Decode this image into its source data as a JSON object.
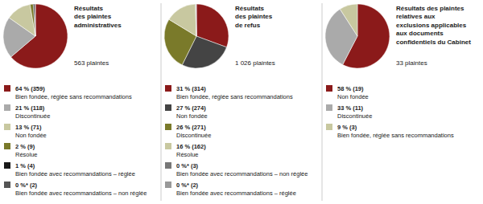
{
  "chart_data": [
    {
      "type": "pie",
      "title": "Résultats\ndes plaintes\nadministratives",
      "subtitle": "563 plaintes",
      "categories": [
        "Bien fondée, réglée sans recommandations",
        "Discontinuée",
        "Non fondée",
        "Résolue",
        "Bien fondée avec recommandations – réglée",
        "Bien fondée avec recommandations – non réglée"
      ],
      "values": [
        359,
        118,
        71,
        9,
        4,
        2
      ],
      "value_labels": [
        "64 % (359)",
        "21 % (118)",
        "13 % (71)",
        "2 % (9)",
        "1 % (4)",
        "0 %* (2)"
      ],
      "colors": [
        "#8B1A1A",
        "#AAAAAA",
        "#C8C8A0",
        "#7A7A2A",
        "#1A1A1A",
        "#555555"
      ]
    },
    {
      "type": "pie",
      "title": "Résultats\ndes plaintes\nde refus",
      "subtitle": "1 026 plaintes",
      "categories": [
        "Bien fondée, réglée sans recommandations",
        "Non fondée",
        "Discontinuée",
        "Résolue",
        "Bien fondée avec recommandations – non réglée",
        "Bien fondée avec recommandations – réglée"
      ],
      "values": [
        314,
        274,
        271,
        162,
        3,
        2
      ],
      "value_labels": [
        "31 % (314)",
        "27 % (274)",
        "26 % (271)",
        "16 % (162)",
        "0 %* (3)",
        "0 %* (2)"
      ],
      "colors": [
        "#8B1A1A",
        "#444444",
        "#7A7A2A",
        "#C8C8A0",
        "#777777",
        "#999999"
      ]
    },
    {
      "type": "pie",
      "title": "Résultats des plaintes\nrelatives aux\nexclusions applicables\naux documents\nconfidentiels du Cabinet",
      "subtitle": "33 plaintes",
      "categories": [
        "Non fondée",
        "Discontinuée",
        "Bien fondée, réglée sans recommandations"
      ],
      "values": [
        19,
        11,
        3
      ],
      "value_labels": [
        "58 % (19)",
        "33 % (11)",
        "9 % (3)"
      ],
      "colors": [
        "#8B1A1A",
        "#AAAAAA",
        "#C8C8A0"
      ]
    }
  ]
}
